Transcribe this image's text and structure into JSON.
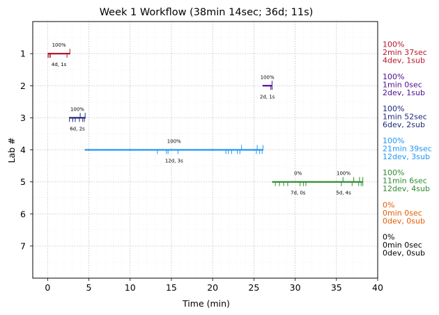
{
  "chart_data": {
    "type": "timeline",
    "title": "Week 1 Workflow (38min 14sec; 36d; 11s)",
    "xlabel": "Time (min)",
    "ylabel": "Lab #",
    "xlim": [
      -1.8,
      40
    ],
    "ylim": [
      8,
      0
    ],
    "xticks": [
      0,
      5,
      10,
      15,
      20,
      25,
      30,
      35,
      40
    ],
    "xtick_labels": [
      "0",
      "5",
      "10",
      "15",
      "20",
      "25",
      "30",
      "35",
      "40"
    ],
    "yticks": [
      1,
      2,
      3,
      4,
      5,
      6,
      7
    ],
    "ytick_labels": [
      "1",
      "2",
      "3",
      "4",
      "5",
      "6",
      "7"
    ],
    "grid": true,
    "labs": [
      {
        "lab": 1,
        "color": "#b2182b",
        "segments": [
          {
            "start": 0.0,
            "end": 2.75,
            "pct_label": "100%",
            "count_label": "4d, 1s",
            "dev_ticks": [
              0.05,
              0.2,
              0.35,
              2.35
            ],
            "sub_ticks": [
              2.7
            ]
          }
        ],
        "side_lines": [
          "100%",
          "2min 37sec",
          "4dev, 1sub"
        ]
      },
      {
        "lab": 2,
        "color": "#4b0f8c",
        "segments": [
          {
            "start": 26.05,
            "end": 27.2,
            "pct_label": "100%",
            "count_label": "2d, 1s",
            "dev_ticks": [
              27.05,
              27.2
            ],
            "sub_ticks": [
              27.2
            ]
          }
        ],
        "side_lines": [
          "100%",
          "1min 0sec",
          "2dev, 1sub"
        ]
      },
      {
        "lab": 3,
        "color": "#1f2a7a",
        "segments": [
          {
            "start": 2.6,
            "end": 4.6,
            "pct_label": "100%",
            "count_label": "6d, 2s",
            "dev_ticks": [
              2.65,
              3.05,
              3.35,
              3.85,
              4.25,
              4.45
            ],
            "sub_ticks": [
              3.95,
              4.55
            ]
          }
        ],
        "side_lines": [
          "100%",
          "1min 52sec",
          "6dev, 2sub"
        ]
      },
      {
        "lab": 4,
        "color": "#2196f3",
        "segments": [
          {
            "start": 4.5,
            "end": 26.15,
            "pct_label": "100%",
            "count_label": "12d, 3s",
            "dev_ticks": [
              13.3,
              14.4,
              14.6,
              15.8,
              21.6,
              21.9,
              22.3,
              23.0,
              23.3,
              25.3,
              25.7,
              26.0
            ],
            "sub_ticks": [
              23.5,
              25.4,
              26.1
            ]
          }
        ],
        "side_lines": [
          "100%",
          "21min 39sec",
          "12dev, 3sub"
        ]
      },
      {
        "lab": 5,
        "color": "#2e8b2e",
        "segments": [
          {
            "start": 27.2,
            "end": 33.5,
            "pct_label": "0%",
            "count_label": "7d, 0s",
            "dev_ticks": [
              27.6,
              28.1,
              28.6,
              29.1,
              30.6,
              31.0,
              31.3
            ],
            "sub_ticks": []
          },
          {
            "start": 33.5,
            "end": 38.23,
            "pct_label": "100%",
            "count_label": "5d, 4s",
            "dev_ticks": [
              35.6,
              36.9,
              37.7,
              38.0,
              38.2
            ],
            "sub_ticks": [
              35.8,
              37.1,
              37.8,
              38.2
            ]
          }
        ],
        "side_lines": [
          "100%",
          "11min 6sec",
          "12dev, 4sub"
        ]
      },
      {
        "lab": 6,
        "color": "#e65c00",
        "segments": [],
        "side_lines": [
          "0%",
          "0min 0sec",
          "0dev, 0sub"
        ]
      },
      {
        "lab": 7,
        "color": "#000000",
        "segments": [],
        "side_lines": [
          "0%",
          "0min 0sec",
          "0dev, 0sub"
        ]
      }
    ]
  }
}
